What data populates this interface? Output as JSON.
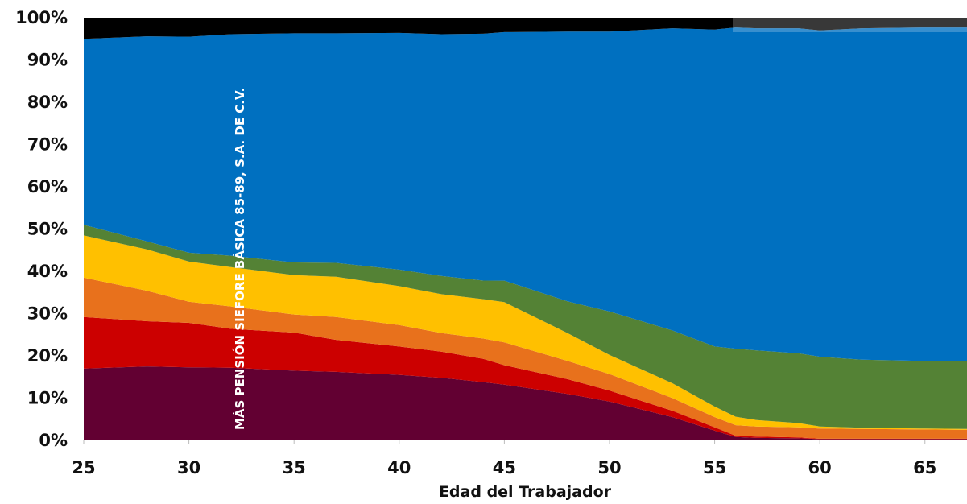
{
  "chart_data": {
    "type": "area",
    "stacked": true,
    "normalized": true,
    "title": "",
    "xlabel": "Edad del Trabajador",
    "ylabel": "",
    "xlim": [
      25,
      67
    ],
    "ylim": [
      0,
      100
    ],
    "x_ticks": [
      "25",
      "30",
      "35",
      "40",
      "45",
      "50",
      "55",
      "60",
      "65"
    ],
    "y_ticks": [
      "0%",
      "10%",
      "20%",
      "30%",
      "40%",
      "50%",
      "60%",
      "70%",
      "80%",
      "90%",
      "100%"
    ],
    "grid": false,
    "legend": "none",
    "annotation": "MÁS PENSIÓN SIEFORE BÁSICA 85-89, S.A. DE C.V.",
    "x": [
      25,
      28,
      30,
      32,
      35,
      37,
      40,
      42,
      44,
      45,
      48,
      50,
      53,
      55,
      56,
      57,
      59,
      60,
      62,
      65,
      67
    ],
    "series": [
      {
        "color": "#620032",
        "values": [
          17,
          17.5,
          17.3,
          17.2,
          16.5,
          16.2,
          15.5,
          14.8,
          13.8,
          13.2,
          11,
          9.2,
          5.5,
          2.3,
          0.8,
          0.6,
          0.5,
          0.3,
          0.3,
          0.3,
          0.3
        ]
      },
      {
        "color": "#cc0000",
        "values": [
          12.2,
          10.7,
          10.5,
          9.2,
          9,
          7.6,
          6.7,
          6.2,
          5.5,
          4.6,
          3.5,
          2.6,
          1.5,
          0.8,
          0.3,
          0.3,
          0.2,
          0.1,
          0.1,
          0.1,
          0.1
        ]
      },
      {
        "color": "#e8711c",
        "values": [
          9.3,
          7.2,
          5,
          5.3,
          4.3,
          5.4,
          5.1,
          4.4,
          4.8,
          5.4,
          4.3,
          3.9,
          3,
          2.4,
          2.5,
          2.4,
          2.4,
          2.4,
          2.3,
          2.2,
          2.1
        ]
      },
      {
        "color": "#ffc000",
        "values": [
          10,
          9.8,
          9.5,
          9.3,
          9.3,
          9.5,
          9.2,
          9.2,
          9.3,
          9.5,
          6.6,
          4.5,
          3.5,
          2.5,
          2,
          1.5,
          1,
          0.5,
          0.3,
          0.2,
          0.2
        ]
      },
      {
        "color": "#548235",
        "values": [
          2.5,
          1.9,
          2.1,
          2.7,
          3,
          3.3,
          3.9,
          4.3,
          4.4,
          5.1,
          7.5,
          10.3,
          12.5,
          14.2,
          16.1,
          16.5,
          16.5,
          16.5,
          16.1,
          16,
          16
        ]
      },
      {
        "color": "#0070c0",
        "values": [
          44,
          48.5,
          51.1,
          52.4,
          54.2,
          54.3,
          56,
          57.2,
          58.4,
          58.8,
          63.8,
          66.2,
          71.5,
          75,
          76,
          76.2,
          76.9,
          77.2,
          78.4,
          78.9,
          79
        ]
      },
      {
        "color": "#000000",
        "values": [
          5,
          4.4,
          4.5,
          3.9,
          3.7,
          3.7,
          3.6,
          3.9,
          3.8,
          3.4,
          3.3,
          3.3,
          2.5,
          2.8,
          2.3,
          2.5,
          2.5,
          3,
          2.5,
          2.3,
          2.3
        ]
      }
    ]
  }
}
